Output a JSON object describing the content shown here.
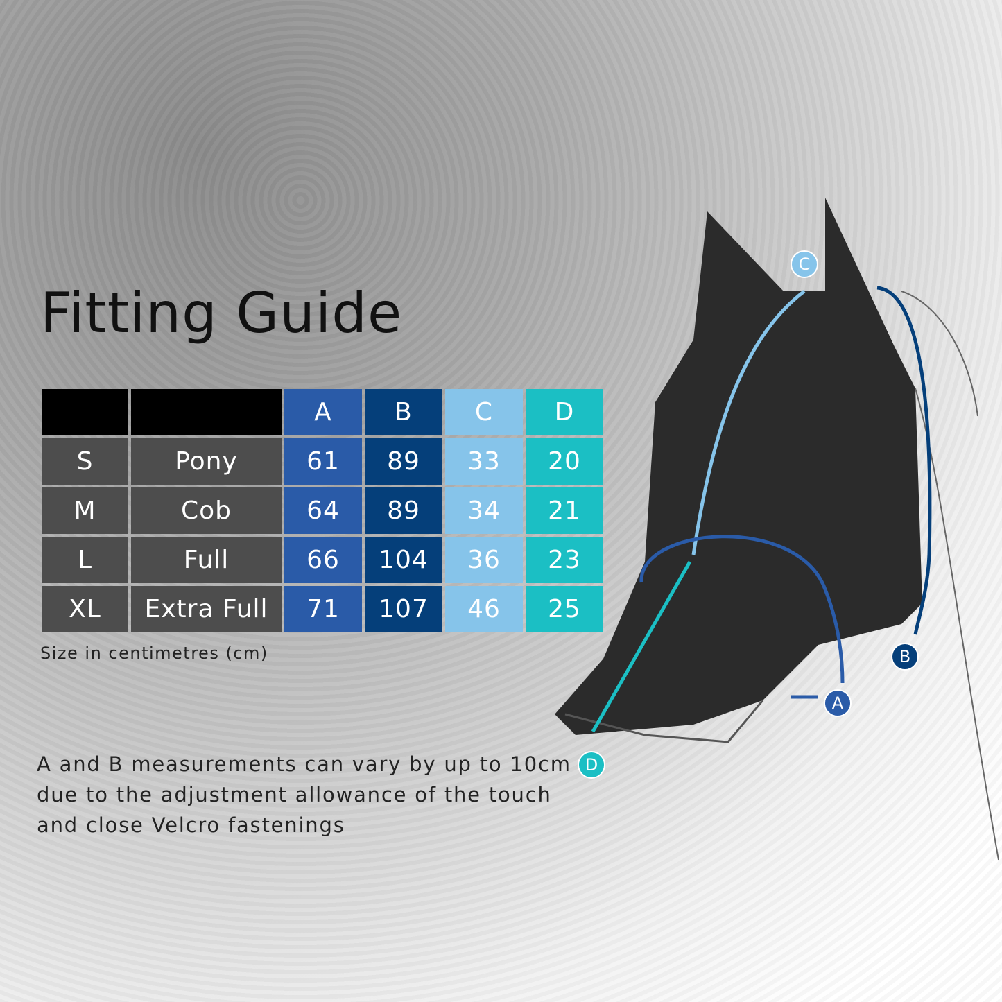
{
  "title": "Fitting Guide",
  "colors": {
    "A": "#2a5ba8",
    "B": "#053f7a",
    "C": "#86c4ea",
    "D": "#1bbfc4",
    "row": "#4d4d4d",
    "header": "#000000"
  },
  "table": {
    "headers": [
      "",
      "",
      "A",
      "B",
      "C",
      "D"
    ],
    "rows": [
      [
        "S",
        "Pony",
        "61",
        "89",
        "33",
        "20"
      ],
      [
        "M",
        "Cob",
        "64",
        "89",
        "34",
        "21"
      ],
      [
        "L",
        "Full",
        "66",
        "104",
        "36",
        "23"
      ],
      [
        "XL",
        "Extra Full",
        "71",
        "107",
        "46",
        "25"
      ]
    ]
  },
  "unit_note": "Size in centimetres (cm)",
  "note": "A and B measurements can vary by up to 10cm due to the adjustment allowance of the touch and close Velcro fastenings",
  "diagram": {
    "labels": [
      "A",
      "B",
      "C",
      "D"
    ]
  }
}
